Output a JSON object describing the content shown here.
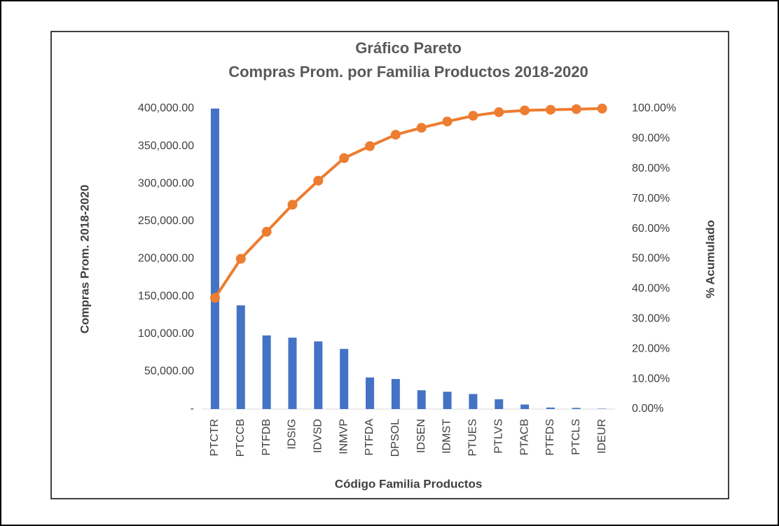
{
  "chart_data": {
    "type": "bar",
    "title": "Gráfico Pareto",
    "subtitle": "Compras Prom. por Familia Productos 2018-2020",
    "x_label": "Código Familia Productos",
    "y_label": "Compras Prom. 2018-2020",
    "y2_label": "% Acumulado",
    "categories": [
      "PTCTR",
      "PTCCB",
      "PTFDB",
      "IDSIG",
      "IDVSD",
      "INMVP",
      "PTFDA",
      "DPSOL",
      "IDSEN",
      "IDMST",
      "PTUES",
      "PTLVS",
      "PTACB",
      "PTFDS",
      "PTCLS",
      "IDEUR"
    ],
    "series": [
      {
        "type": "bar",
        "color": "#4472c4",
        "values": [
          400000,
          138000,
          98000,
          95000,
          90000,
          80000,
          42000,
          40000,
          25000,
          23000,
          20000,
          13000,
          6000,
          2000,
          1500,
          500
        ]
      },
      {
        "type": "line",
        "axis": "y2",
        "color": "#ed7d31",
        "values": [
          37,
          50,
          59,
          68,
          76,
          83.5,
          87.5,
          91.3,
          93.6,
          95.7,
          97.6,
          98.8,
          99.4,
          99.6,
          99.8,
          100
        ]
      }
    ],
    "ylim": [
      0,
      400000
    ],
    "yticks": [
      {
        "value": 0,
        "label": "-"
      },
      {
        "value": 50000,
        "label": "50,000.00"
      },
      {
        "value": 100000,
        "label": "100,000.00"
      },
      {
        "value": 150000,
        "label": "150,000.00"
      },
      {
        "value": 200000,
        "label": "200,000.00"
      },
      {
        "value": 250000,
        "label": "250,000.00"
      },
      {
        "value": 300000,
        "label": "300,000.00"
      },
      {
        "value": 350000,
        "label": "350,000.00"
      },
      {
        "value": 400000,
        "label": "400,000.00"
      }
    ],
    "y2lim": [
      0,
      100
    ],
    "y2ticks": [
      {
        "value": 0,
        "label": "0.00%"
      },
      {
        "value": 10,
        "label": "10.00%"
      },
      {
        "value": 20,
        "label": "20.00%"
      },
      {
        "value": 30,
        "label": "30.00%"
      },
      {
        "value": 40,
        "label": "40.00%"
      },
      {
        "value": 50,
        "label": "50.00%"
      },
      {
        "value": 60,
        "label": "60.00%"
      },
      {
        "value": 70,
        "label": "70.00%"
      },
      {
        "value": 80,
        "label": "80.00%"
      },
      {
        "value": 90,
        "label": "90.00%"
      },
      {
        "value": 100,
        "label": "100.00%"
      }
    ],
    "grid": false
  }
}
